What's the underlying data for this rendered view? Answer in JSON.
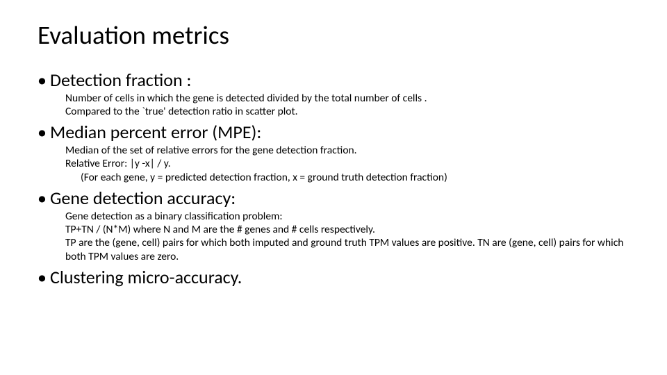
{
  "typography": {
    "title_fontsize_pt": 28,
    "bullet_fontsize_pt": 20,
    "desc_fontsize_pt": 12,
    "font_family": "Calibri",
    "text_color": "#000000",
    "background_color": "#ffffff"
  },
  "title": "Evaluation metrics",
  "bullet_char": "•",
  "items": [
    {
      "label": "Detection fraction :",
      "desc_lines": [
        "Number of cells in which the gene is detected divided by the total number of cells .",
        "Compared to the `true' detection ratio in scatter plot."
      ]
    },
    {
      "label": "Median percent error (MPE):",
      "desc_lines": [
        "Median of the set of relative errors for the gene detection fraction.",
        "Relative Error: |y -x| / y."
      ],
      "desc_indent_line": "(For each gene, y = predicted detection fraction, x = ground truth detection fraction)"
    },
    {
      "label": "Gene detection accuracy:",
      "desc_lines": [
        "Gene detection as a binary classification problem:",
        "TP+TN / (N*M) where N and M are the # genes and # cells respectively.",
        "TP are the (gene, cell) pairs for which both imputed and ground truth TPM values are positive. TN are (gene, cell) pairs for which both TPM values are zero."
      ]
    },
    {
      "label": "Clustering micro-accuracy.",
      "desc_lines": []
    }
  ]
}
